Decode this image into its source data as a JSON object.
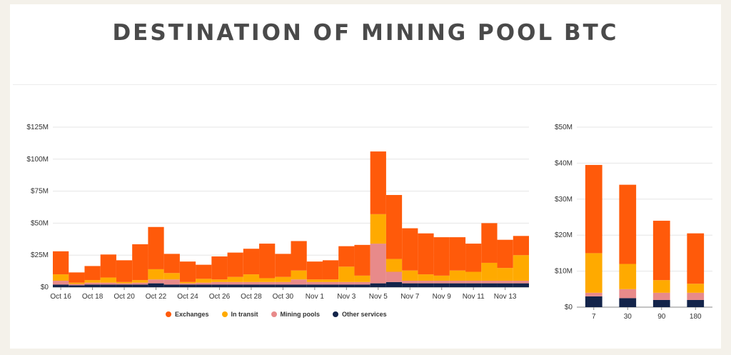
{
  "title": "DESTINATION OF MINING POOL BTC",
  "colors": {
    "Exchanges": "#ff5a0a",
    "In transit": "#ffaa00",
    "Mining pools": "#e88a8a",
    "Other services": "#13244a"
  },
  "legend": [
    "Exchanges",
    "In transit",
    "Mining pools",
    "Other services"
  ],
  "chart_data": [
    {
      "type": "bar",
      "stacked": true,
      "x_tick_labels": [
        "Oct 16",
        "Oct 18",
        "Oct 20",
        "Oct 22",
        "Oct 24",
        "Oct 26",
        "Oct 28",
        "Oct 30",
        "Nov 1",
        "Nov 3",
        "Nov 5",
        "Nov 7",
        "Nov 9",
        "Nov 11",
        "Nov 13"
      ],
      "y_tick_labels": [
        "$0",
        "$25M",
        "$50M",
        "$75M",
        "$100M",
        "$125M"
      ],
      "ylim": [
        0,
        125
      ],
      "grid": true,
      "categories": [
        "Oct 16",
        "Oct 17",
        "Oct 18",
        "Oct 19",
        "Oct 20",
        "Oct 21",
        "Oct 22",
        "Oct 23",
        "Oct 24",
        "Oct 25",
        "Oct 26",
        "Oct 27",
        "Oct 28",
        "Oct 29",
        "Oct 30",
        "Oct 31",
        "Nov 1",
        "Nov 2",
        "Nov 3",
        "Nov 4",
        "Nov 5",
        "Nov 6",
        "Nov 7",
        "Nov 8",
        "Nov 9",
        "Nov 10",
        "Nov 11",
        "Nov 12",
        "Nov 13",
        "Nov 14"
      ],
      "series": [
        {
          "name": "Other services",
          "values": [
            2,
            1.5,
            2,
            2,
            2,
            2,
            3,
            2,
            2,
            2,
            2,
            2,
            2,
            2,
            2,
            2,
            2,
            2,
            2,
            2,
            3,
            4,
            3,
            3,
            3,
            3,
            3,
            3,
            3,
            3
          ]
        },
        {
          "name": "Mining pools",
          "values": [
            3,
            1,
            1.5,
            1.5,
            1,
            1.5,
            3,
            4,
            1,
            1.5,
            2,
            2,
            2,
            2,
            2,
            4,
            2,
            2,
            2,
            2,
            31,
            8,
            2,
            2,
            2,
            2,
            2,
            2,
            2,
            2
          ]
        },
        {
          "name": "In transit",
          "values": [
            5,
            1,
            2,
            4,
            1,
            2,
            8,
            5,
            1,
            3,
            2,
            4,
            6,
            3,
            4,
            7,
            2,
            2,
            12,
            5,
            23,
            10,
            8,
            5,
            4,
            8,
            7,
            14,
            10,
            20
          ]
        },
        {
          "name": "Exchanges",
          "values": [
            18,
            8,
            11,
            18,
            17,
            28,
            33,
            15,
            16,
            11,
            18,
            19,
            20,
            27,
            18,
            23,
            14,
            15,
            16,
            24,
            49,
            50,
            33,
            32,
            30,
            26,
            22,
            31,
            22,
            15
          ]
        }
      ]
    },
    {
      "type": "bar",
      "stacked": true,
      "categories": [
        "7",
        "30",
        "90",
        "180"
      ],
      "y_tick_labels": [
        "$0",
        "$10M",
        "$20M",
        "$30M",
        "$40M",
        "$50M"
      ],
      "ylim": [
        0,
        50
      ],
      "grid": true,
      "series": [
        {
          "name": "Other services",
          "values": [
            3,
            2.5,
            2,
            2
          ]
        },
        {
          "name": "Mining pools",
          "values": [
            1,
            2.5,
            2,
            2
          ]
        },
        {
          "name": "In transit",
          "values": [
            11,
            7,
            3.5,
            2.5
          ]
        },
        {
          "name": "Exchanges",
          "values": [
            24.5,
            22,
            16.5,
            14
          ]
        }
      ]
    }
  ]
}
